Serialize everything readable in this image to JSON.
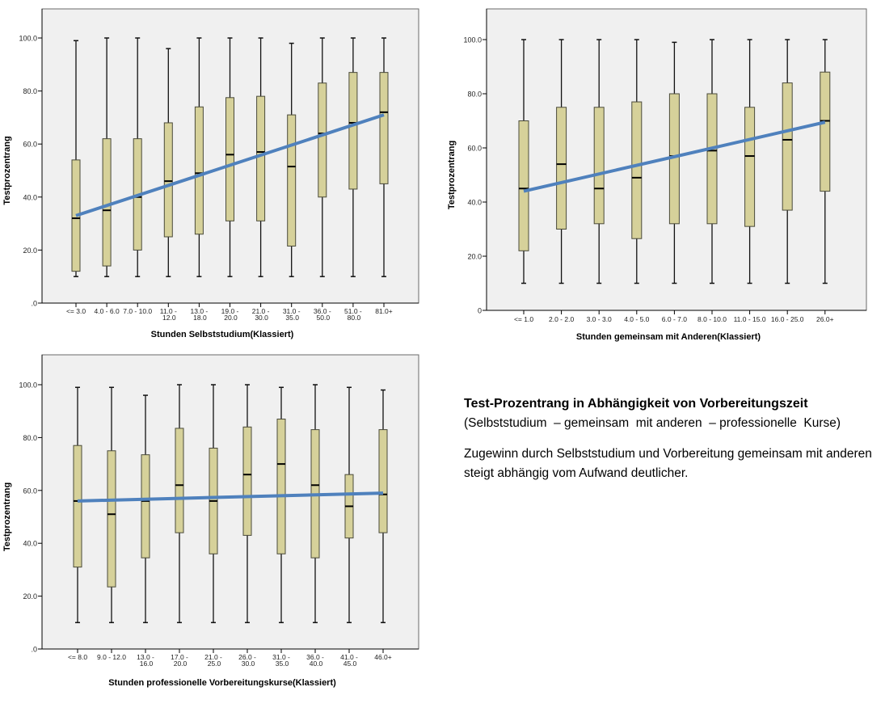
{
  "colors": {
    "plot_bg": "#f0f0f0",
    "plot_border": "#555555",
    "box_fill": "#d6d19a",
    "box_stroke": "#4a4a3a",
    "median": "#000000",
    "regression_line": "#4f81bd"
  },
  "chart_data": [
    {
      "type": "boxplot",
      "title": "",
      "xlabel": "Stunden Selbststudium(Klassiert)",
      "ylabel": "Testprozentrang",
      "ylim": [
        0,
        100
      ],
      "yticks": [
        ".0",
        "20.0",
        "40.0",
        "60.0",
        "80.0",
        "100.0"
      ],
      "grid": false,
      "categories": [
        [
          "<= 3.0"
        ],
        [
          "4.0 - 6.0"
        ],
        [
          "7.0 - 10.0"
        ],
        [
          "11.0 -",
          "12.0"
        ],
        [
          "13.0 -",
          "18.0"
        ],
        [
          "19.0 -",
          "20.0"
        ],
        [
          "21.0 -",
          "30.0"
        ],
        [
          "31.0 -",
          "35.0"
        ],
        [
          "36.0 -",
          "50.0"
        ],
        [
          "51.0 -",
          "80.0"
        ],
        [
          "81.0+"
        ]
      ],
      "boxes": [
        {
          "min": 10,
          "q1": 12,
          "median": 32,
          "q3": 54,
          "max": 99
        },
        {
          "min": 10,
          "q1": 14,
          "median": 35,
          "q3": 62,
          "max": 100
        },
        {
          "min": 10,
          "q1": 20,
          "median": 40,
          "q3": 62,
          "max": 100
        },
        {
          "min": 10,
          "q1": 25,
          "median": 46,
          "q3": 68,
          "max": 96
        },
        {
          "min": 10,
          "q1": 26,
          "median": 49,
          "q3": 74,
          "max": 100
        },
        {
          "min": 10,
          "q1": 31,
          "median": 56,
          "q3": 77.5,
          "max": 100
        },
        {
          "min": 10,
          "q1": 31,
          "median": 57,
          "q3": 78,
          "max": 100
        },
        {
          "min": 10,
          "q1": 21.5,
          "median": 51.5,
          "q3": 71,
          "max": 98
        },
        {
          "min": 10,
          "q1": 40,
          "median": 64,
          "q3": 83,
          "max": 100
        },
        {
          "min": 10,
          "q1": 43,
          "median": 68,
          "q3": 87,
          "max": 100
        },
        {
          "min": 10,
          "q1": 45,
          "median": 72,
          "q3": 87,
          "max": 100
        }
      ],
      "trend_line": {
        "start": 33,
        "end": 71
      }
    },
    {
      "type": "boxplot",
      "title": "",
      "xlabel": "Stunden gemeinsam mit Anderen(Klassiert)",
      "ylabel": "Testprozentrang",
      "ylim": [
        0,
        100
      ],
      "yticks": [
        "0",
        "20.0",
        "40.0",
        "60.0",
        "80.0",
        "100.0"
      ],
      "grid": false,
      "categories": [
        [
          "<= 1.0"
        ],
        [
          "2.0 - 2.0"
        ],
        [
          "3.0 - 3.0"
        ],
        [
          "4.0 - 5.0"
        ],
        [
          "6.0 - 7.0"
        ],
        [
          "8.0 - 10.0"
        ],
        [
          "11.0 - 15.0"
        ],
        [
          "16.0 - 25.0"
        ],
        [
          "26.0+"
        ]
      ],
      "boxes": [
        {
          "min": 10,
          "q1": 22,
          "median": 45,
          "q3": 70,
          "max": 100
        },
        {
          "min": 10,
          "q1": 30,
          "median": 54,
          "q3": 75,
          "max": 100
        },
        {
          "min": 10,
          "q1": 32,
          "median": 45,
          "q3": 75,
          "max": 100
        },
        {
          "min": 10,
          "q1": 26.5,
          "median": 49,
          "q3": 77,
          "max": 100
        },
        {
          "min": 10,
          "q1": 32,
          "median": 57,
          "q3": 80,
          "max": 99
        },
        {
          "min": 10,
          "q1": 32,
          "median": 59,
          "q3": 80,
          "max": 100
        },
        {
          "min": 10,
          "q1": 31,
          "median": 57,
          "q3": 75,
          "max": 100
        },
        {
          "min": 10,
          "q1": 37,
          "median": 63,
          "q3": 84,
          "max": 100
        },
        {
          "min": 10,
          "q1": 44,
          "median": 70,
          "q3": 88,
          "max": 100
        }
      ],
      "trend_line": {
        "start": 44,
        "end": 69.5
      }
    },
    {
      "type": "boxplot",
      "title": "",
      "xlabel": "Stunden professionelle Vorbereitungskurse(Klassiert)",
      "ylabel": "Testprozentrang",
      "ylim": [
        0,
        100
      ],
      "yticks": [
        ".0",
        "20.0",
        "40.0",
        "60.0",
        "80.0",
        "100.0"
      ],
      "grid": false,
      "categories": [
        [
          "<= 8.0"
        ],
        [
          "9.0 - 12.0"
        ],
        [
          "13.0 -",
          "16.0"
        ],
        [
          "17.0 -",
          "20.0"
        ],
        [
          "21.0 -",
          "25.0"
        ],
        [
          "26.0 -",
          "30.0"
        ],
        [
          "31.0 -",
          "35.0"
        ],
        [
          "36.0 -",
          "40.0"
        ],
        [
          "41.0 -",
          "45.0"
        ],
        [
          "46.0+"
        ]
      ],
      "boxes": [
        {
          "min": 10,
          "q1": 31,
          "median": 56,
          "q3": 77,
          "max": 99
        },
        {
          "min": 10,
          "q1": 23.5,
          "median": 51,
          "q3": 75,
          "max": 99
        },
        {
          "min": 10,
          "q1": 34.5,
          "median": 56,
          "q3": 73.5,
          "max": 96
        },
        {
          "min": 10,
          "q1": 44,
          "median": 62,
          "q3": 83.5,
          "max": 100
        },
        {
          "min": 10,
          "q1": 36,
          "median": 56,
          "q3": 76,
          "max": 100
        },
        {
          "min": 10,
          "q1": 43,
          "median": 66,
          "q3": 84,
          "max": 100
        },
        {
          "min": 10,
          "q1": 36,
          "median": 70,
          "q3": 87,
          "max": 99
        },
        {
          "min": 10,
          "q1": 34.5,
          "median": 62,
          "q3": 83,
          "max": 100
        },
        {
          "min": 10,
          "q1": 42,
          "median": 54,
          "q3": 66,
          "max": 99
        },
        {
          "min": 10,
          "q1": 44,
          "median": 58.5,
          "q3": 83,
          "max": 98
        }
      ],
      "trend_line": {
        "start": 56,
        "end": 59
      }
    }
  ],
  "text": {
    "title": "Test-Prozentrang in Abhängigkeit von Vorbereitungszeit",
    "subtitle": "(Selbststudium  – gemeinsam  mit anderen  – professionelle  Kurse)",
    "body": "Zugewinn durch Selbststudium  und Vorbereitung gemeinsam  mit anderen steigt  abhängig vom Aufwand deutlicher."
  }
}
